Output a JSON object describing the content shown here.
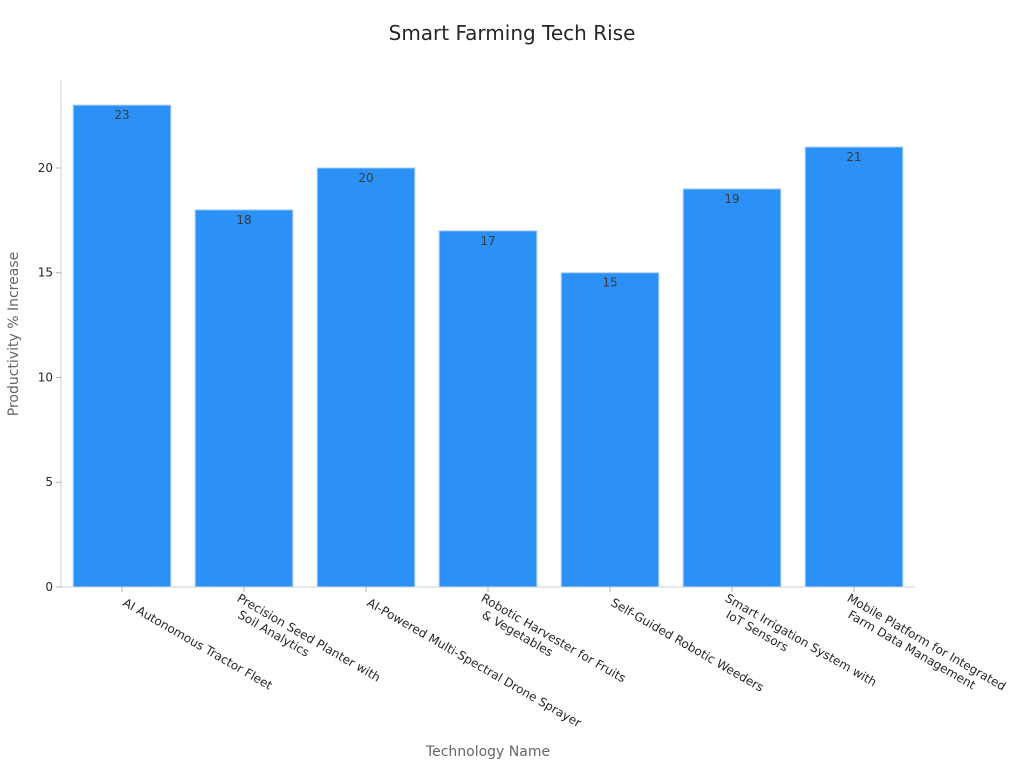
{
  "chart_data": {
    "type": "bar",
    "title": "Smart Farming Tech Rise",
    "xlabel": "Technology Name",
    "ylabel": "Productivity % Increase",
    "categories": [
      [
        "AI Autonomous Tractor Fleet"
      ],
      [
        "Precision Seed Planter with",
        "Soil Analytics"
      ],
      [
        "AI-Powered Multi-Spectral Drone Sprayer"
      ],
      [
        "Robotic Harvester for Fruits",
        "& Vegetables"
      ],
      [
        "Self-Guided Robotic Weeders"
      ],
      [
        "Smart Irrigation System with",
        "IoT Sensors"
      ],
      [
        "Mobile Platform for Integrated",
        "Farm Data Management"
      ]
    ],
    "values": [
      23,
      18,
      20,
      17,
      15,
      19,
      21
    ],
    "yticks": [
      0,
      5,
      10,
      15,
      20
    ],
    "ylim": [
      0,
      24.2
    ],
    "grid": false,
    "bar_color": "#2b91f7",
    "bar_edge_color": "#a9cdf5"
  }
}
